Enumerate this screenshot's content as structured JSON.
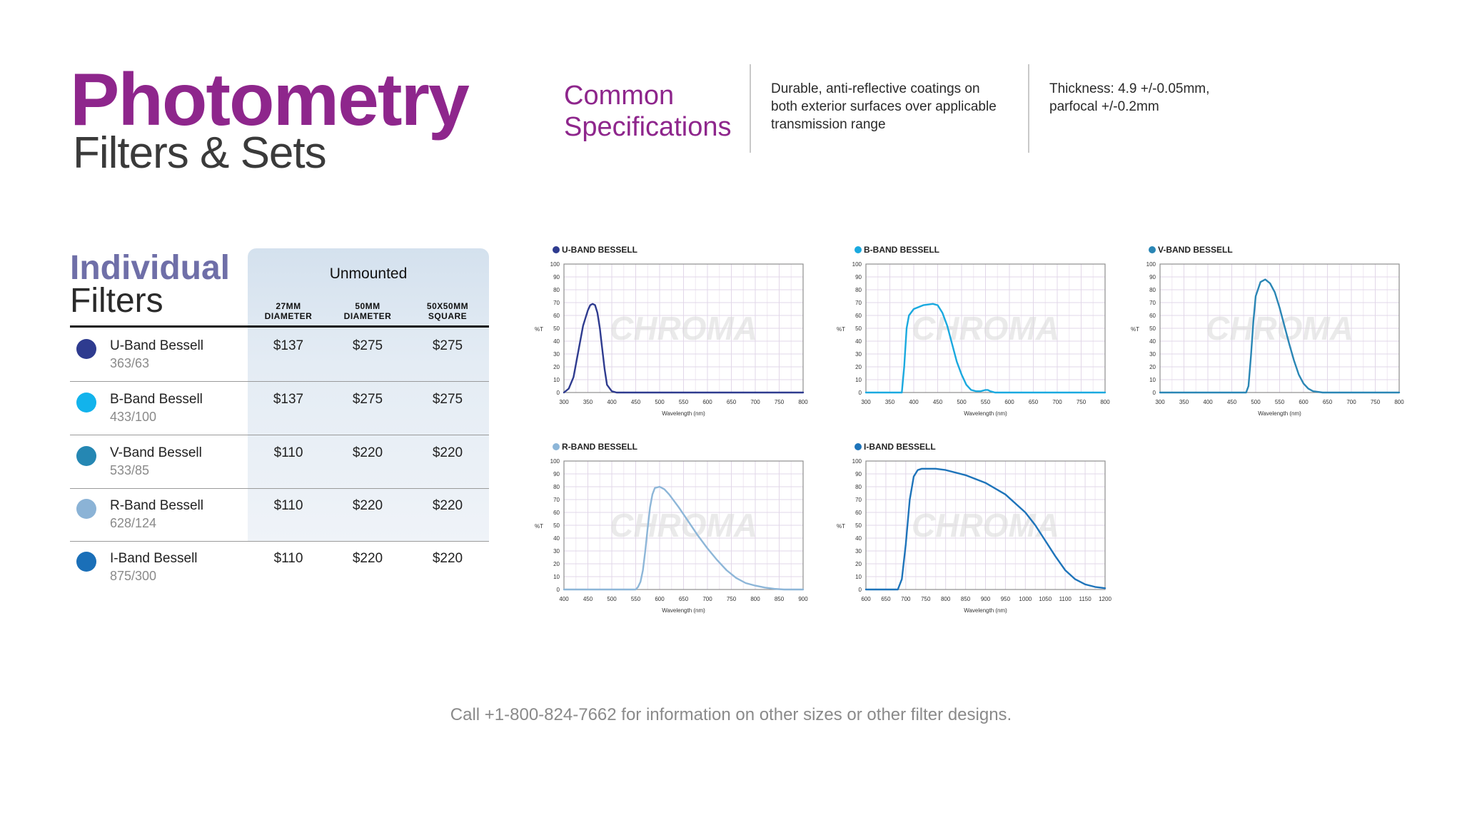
{
  "header": {
    "title": "Photometry",
    "subtitle": "Filters & Sets",
    "common_label": "Common Specifications",
    "spec1": [
      "Durable, anti-reflective coatings on",
      "both exterior surfaces over applicable",
      "transmission range"
    ],
    "spec2": [
      "Thickness: 4.9 +/-0.05mm,",
      "parfocal +/-0.2mm"
    ]
  },
  "table": {
    "title": "Individual",
    "subtitle": "Filters",
    "group_header": "Unmounted",
    "columns": [
      [
        "27MM",
        "DIAMETER"
      ],
      [
        "50MM",
        "DIAMETER"
      ],
      [
        "50X50MM",
        "SQUARE"
      ]
    ],
    "rows": [
      {
        "name": "U-Band Bessell",
        "code": "363/63",
        "color": "#2e3b8f",
        "prices": [
          "$137",
          "$275",
          "$275"
        ]
      },
      {
        "name": "B-Band Bessell",
        "code": "433/100",
        "color": "#12b3ec",
        "prices": [
          "$137",
          "$275",
          "$275"
        ]
      },
      {
        "name": "V-Band Bessell",
        "code": "533/85",
        "color": "#2587b3",
        "prices": [
          "$110",
          "$220",
          "$220"
        ]
      },
      {
        "name": "R-Band Bessell",
        "code": "628/124",
        "color": "#8bb3d6",
        "prices": [
          "$110",
          "$220",
          "$220"
        ]
      },
      {
        "name": "I-Band Bessell",
        "code": "875/300",
        "color": "#1a6fb8",
        "prices": [
          "$110",
          "$220",
          "$220"
        ]
      }
    ]
  },
  "chart_data": [
    {
      "type": "line",
      "title": "U-BAND BESSELL",
      "color": "#2e3b8f",
      "xlabel": "Wavelength (nm)",
      "ylabel": "%T",
      "xlim": [
        300,
        800
      ],
      "ylim": [
        0,
        100
      ],
      "xticks": [
        300,
        350,
        400,
        450,
        500,
        550,
        600,
        650,
        700,
        750,
        800
      ],
      "yticks": [
        0,
        10,
        20,
        30,
        40,
        50,
        60,
        70,
        80,
        90,
        100
      ],
      "grid": true,
      "watermark": "CHROMA",
      "series": [
        {
          "x": [
            300,
            310,
            320,
            330,
            340,
            350,
            355,
            360,
            365,
            370,
            375,
            380,
            385,
            390,
            400,
            410,
            800
          ],
          "y": [
            0,
            3,
            12,
            32,
            52,
            64,
            68,
            69,
            68,
            62,
            50,
            34,
            18,
            6,
            1,
            0,
            0
          ]
        }
      ]
    },
    {
      "type": "line",
      "title": "B-BAND BESSELL",
      "color": "#1aa9df",
      "xlabel": "Wavelength (nm)",
      "ylabel": "%T",
      "xlim": [
        300,
        800
      ],
      "ylim": [
        0,
        100
      ],
      "xticks": [
        300,
        350,
        400,
        450,
        500,
        550,
        600,
        650,
        700,
        750,
        800
      ],
      "yticks": [
        0,
        10,
        20,
        30,
        40,
        50,
        60,
        70,
        80,
        90,
        100
      ],
      "grid": true,
      "watermark": "CHROMA",
      "series": [
        {
          "x": [
            300,
            375,
            380,
            385,
            390,
            400,
            420,
            440,
            450,
            460,
            470,
            480,
            490,
            500,
            510,
            520,
            530,
            540,
            550,
            555,
            560,
            570,
            800
          ],
          "y": [
            0,
            0,
            20,
            50,
            60,
            65,
            68,
            69,
            68,
            62,
            52,
            38,
            24,
            14,
            6,
            2,
            1,
            1,
            2,
            2,
            1,
            0,
            0
          ]
        }
      ]
    },
    {
      "type": "line",
      "title": "V-BAND BESSELL",
      "color": "#2a86b5",
      "xlabel": "Wavelength (nm)",
      "ylabel": "%T",
      "xlim": [
        300,
        800
      ],
      "ylim": [
        0,
        100
      ],
      "xticks": [
        300,
        350,
        400,
        450,
        500,
        550,
        600,
        650,
        700,
        750,
        800
      ],
      "yticks": [
        0,
        10,
        20,
        30,
        40,
        50,
        60,
        70,
        80,
        90,
        100
      ],
      "grid": true,
      "watermark": "CHROMA",
      "series": [
        {
          "x": [
            300,
            480,
            485,
            490,
            495,
            500,
            510,
            520,
            530,
            540,
            550,
            560,
            570,
            580,
            590,
            600,
            610,
            620,
            630,
            640,
            800
          ],
          "y": [
            0,
            0,
            5,
            28,
            55,
            75,
            86,
            88,
            85,
            78,
            66,
            52,
            38,
            25,
            14,
            7,
            3,
            1,
            0.5,
            0,
            0
          ]
        }
      ]
    },
    {
      "type": "line",
      "title": "R-BAND BESSELL",
      "color": "#8db6d8",
      "xlabel": "Wavelength (nm)",
      "ylabel": "%T",
      "xlim": [
        400,
        900
      ],
      "ylim": [
        0,
        100
      ],
      "xticks": [
        400,
        450,
        500,
        550,
        600,
        650,
        700,
        750,
        800,
        850,
        900
      ],
      "yticks": [
        0,
        10,
        20,
        30,
        40,
        50,
        60,
        70,
        80,
        90,
        100
      ],
      "grid": true,
      "watermark": "CHROMA",
      "series": [
        {
          "x": [
            400,
            550,
            555,
            560,
            565,
            570,
            575,
            580,
            585,
            590,
            600,
            610,
            620,
            640,
            660,
            680,
            700,
            720,
            740,
            760,
            780,
            800,
            820,
            840,
            860,
            900
          ],
          "y": [
            0,
            0,
            2,
            6,
            15,
            30,
            48,
            64,
            74,
            79,
            80,
            78,
            74,
            64,
            53,
            42,
            32,
            23,
            15,
            9,
            5,
            3,
            1.5,
            0.5,
            0,
            0
          ]
        }
      ]
    },
    {
      "type": "line",
      "title": "I-BAND BESSELL",
      "color": "#1e74ba",
      "xlabel": "Wavelength (nm)",
      "ylabel": "%T",
      "xlim": [
        600,
        1200
      ],
      "ylim": [
        0,
        100
      ],
      "xticks": [
        600,
        650,
        700,
        750,
        800,
        850,
        900,
        950,
        1000,
        1050,
        1100,
        1150,
        1200
      ],
      "yticks": [
        0,
        10,
        20,
        30,
        40,
        50,
        60,
        70,
        80,
        90,
        100
      ],
      "grid": true,
      "watermark": "CHROMA",
      "series": [
        {
          "x": [
            600,
            680,
            690,
            700,
            710,
            720,
            730,
            740,
            750,
            775,
            800,
            850,
            900,
            950,
            1000,
            1025,
            1050,
            1075,
            1100,
            1125,
            1150,
            1175,
            1200
          ],
          "y": [
            0,
            0,
            8,
            35,
            70,
            88,
            93,
            94,
            94,
            94,
            93,
            89,
            83,
            74,
            60,
            50,
            38,
            26,
            15,
            8,
            4,
            2,
            1
          ]
        }
      ]
    }
  ],
  "footer": "Call +1-800-824-7662 for information on other sizes or other filter designs."
}
